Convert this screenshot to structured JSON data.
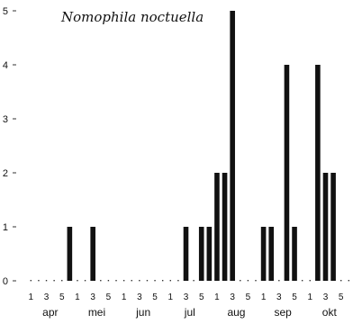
{
  "chart_data": {
    "type": "bar",
    "title": "Nomophila noctuella",
    "xlabel": "",
    "ylabel": "",
    "ylim": [
      0,
      5
    ],
    "y_ticks": [
      "0",
      "1",
      "2",
      "3",
      "4",
      "5"
    ],
    "grid": false,
    "week_labels": [
      "1",
      "3",
      "5"
    ],
    "months": [
      "apr",
      "mei",
      "jun",
      "jul",
      "aug",
      "sep",
      "okt"
    ],
    "periods_per_month": 6,
    "values": [
      0,
      0,
      0,
      0,
      0,
      1,
      0,
      0,
      1,
      0,
      0,
      0,
      0,
      0,
      0,
      0,
      0,
      0,
      0,
      0,
      1,
      0,
      1,
      1,
      2,
      2,
      5,
      0,
      0,
      0,
      1,
      1,
      0,
      4,
      1,
      0,
      0,
      4,
      2,
      2,
      0,
      0
    ],
    "colors": {
      "bar": "#111111",
      "axis": "#333333"
    }
  }
}
